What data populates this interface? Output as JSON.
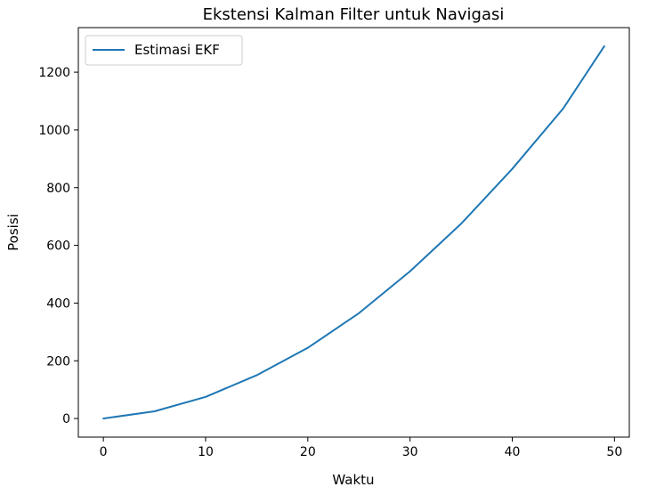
{
  "chart_data": {
    "type": "line",
    "title": "Ekstensi Kalman Filter untuk Navigasi",
    "xlabel": "Waktu",
    "ylabel": "Posisi",
    "xlim": [
      -2.45,
      51.45
    ],
    "ylim": [
      -64.5,
      1354.5
    ],
    "xticks": [
      0,
      10,
      20,
      30,
      40,
      50
    ],
    "yticks": [
      0,
      200,
      400,
      600,
      800,
      1000,
      1200
    ],
    "grid": false,
    "legend_position": "top-left",
    "series": [
      {
        "name": "Estimasi EKF",
        "color": "#1f77b4",
        "x": [
          0,
          5,
          10,
          15,
          20,
          25,
          30,
          35,
          40,
          45,
          49
        ],
        "y": [
          0,
          25,
          75,
          150,
          245,
          365,
          510,
          675,
          865,
          1075,
          1290
        ]
      }
    ]
  }
}
